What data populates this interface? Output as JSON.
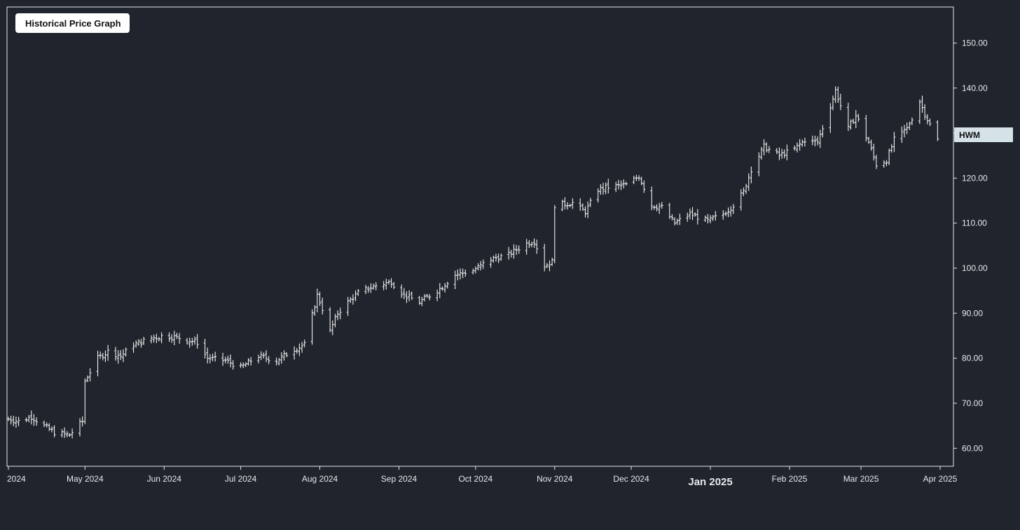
{
  "chart_data": {
    "type": "ohlc",
    "title": "Historical Price Graph",
    "series_label": "HWM",
    "ylim": [
      56,
      158
    ],
    "y_ticks": [
      "60.00",
      "70.00",
      "80.00",
      "90.00",
      "100.00",
      "110.00",
      "120.00",
      "130.00",
      "140.00",
      "150.00"
    ],
    "x_ticks": [
      {
        "label": "2024",
        "date": "2024-04-01"
      },
      {
        "label": "May 2024",
        "date": "2024-05-01"
      },
      {
        "label": "Jun 2024",
        "date": "2024-06-01"
      },
      {
        "label": "Jul 2024",
        "date": "2024-07-01"
      },
      {
        "label": "Aug 2024",
        "date": "2024-08-01"
      },
      {
        "label": "Sep 2024",
        "date": "2024-09-01"
      },
      {
        "label": "Oct 2024",
        "date": "2024-10-01"
      },
      {
        "label": "Nov 2024",
        "date": "2024-11-01"
      },
      {
        "label": "Dec 2024",
        "date": "2024-12-01"
      },
      {
        "label": "Jan 2025",
        "date": "2025-01-01",
        "bold": true
      },
      {
        "label": "Feb 2025",
        "date": "2025-02-01"
      },
      {
        "label": "Mar 2025",
        "date": "2025-03-01"
      },
      {
        "label": "Apr 2025",
        "date": "2025-04-01"
      }
    ],
    "close_points": [
      [
        "2024-04-01",
        66.5
      ],
      [
        "2024-04-05",
        66.0
      ],
      [
        "2024-04-10",
        67.0
      ],
      [
        "2024-04-15",
        65.0
      ],
      [
        "2024-04-19",
        63.5
      ],
      [
        "2024-04-25",
        63.0
      ],
      [
        "2024-04-30",
        66.0
      ],
      [
        "2024-05-01",
        75.0
      ],
      [
        "2024-05-06",
        80.0
      ],
      [
        "2024-05-10",
        81.5
      ],
      [
        "2024-05-15",
        80.5
      ],
      [
        "2024-05-20",
        83.0
      ],
      [
        "2024-05-27",
        84.5
      ],
      [
        "2024-06-01",
        85.0
      ],
      [
        "2024-06-07",
        84.5
      ],
      [
        "2024-06-14",
        83.5
      ],
      [
        "2024-06-18",
        80.0
      ],
      [
        "2024-06-25",
        79.5
      ],
      [
        "2024-07-01",
        78.0
      ],
      [
        "2024-07-08",
        80.5
      ],
      [
        "2024-07-15",
        79.5
      ],
      [
        "2024-07-22",
        82.0
      ],
      [
        "2024-07-26",
        83.0
      ],
      [
        "2024-07-31",
        94.0
      ],
      [
        "2024-08-02",
        91.0
      ],
      [
        "2024-08-05",
        86.0
      ],
      [
        "2024-08-08",
        90.0
      ],
      [
        "2024-08-12",
        92.5
      ],
      [
        "2024-08-16",
        94.5
      ],
      [
        "2024-08-22",
        96.0
      ],
      [
        "2024-08-29",
        97.0
      ],
      [
        "2024-09-03",
        94.0
      ],
      [
        "2024-09-09",
        92.5
      ],
      [
        "2024-09-16",
        95.0
      ],
      [
        "2024-09-23",
        98.5
      ],
      [
        "2024-09-30",
        99.5
      ],
      [
        "2024-10-07",
        102.0
      ],
      [
        "2024-10-14",
        103.0
      ],
      [
        "2024-10-21",
        105.5
      ],
      [
        "2024-10-24",
        106.0
      ],
      [
        "2024-10-28",
        100.5
      ],
      [
        "2024-10-31",
        101.5
      ],
      [
        "2024-11-01",
        114.0
      ],
      [
        "2024-11-08",
        114.5
      ],
      [
        "2024-11-13",
        112.5
      ],
      [
        "2024-11-18",
        117.5
      ],
      [
        "2024-11-22",
        118.0
      ],
      [
        "2024-11-29",
        118.5
      ],
      [
        "2024-12-04",
        120.5
      ],
      [
        "2024-12-09",
        114.0
      ],
      [
        "2024-12-13",
        113.5
      ],
      [
        "2024-12-18",
        110.0
      ],
      [
        "2024-12-24",
        112.0
      ],
      [
        "2024-12-31",
        110.5
      ],
      [
        "2025-01-06",
        112.0
      ],
      [
        "2025-01-10",
        114.0
      ],
      [
        "2025-01-14",
        117.0
      ],
      [
        "2025-01-17",
        122.0
      ],
      [
        "2025-01-22",
        127.0
      ],
      [
        "2025-01-28",
        125.0
      ],
      [
        "2025-02-03",
        126.5
      ],
      [
        "2025-02-07",
        128.5
      ],
      [
        "2025-02-12",
        128.0
      ],
      [
        "2025-02-17",
        136.0
      ],
      [
        "2025-02-19",
        139.5
      ],
      [
        "2025-02-24",
        131.0
      ],
      [
        "2025-02-27",
        134.0
      ],
      [
        "2025-03-04",
        128.0
      ],
      [
        "2025-03-07",
        123.0
      ],
      [
        "2025-03-11",
        124.0
      ],
      [
        "2025-03-14",
        128.5
      ],
      [
        "2025-03-19",
        131.0
      ],
      [
        "2025-03-24",
        137.0
      ],
      [
        "2025-03-27",
        133.0
      ],
      [
        "2025-03-31",
        128.5
      ]
    ]
  }
}
